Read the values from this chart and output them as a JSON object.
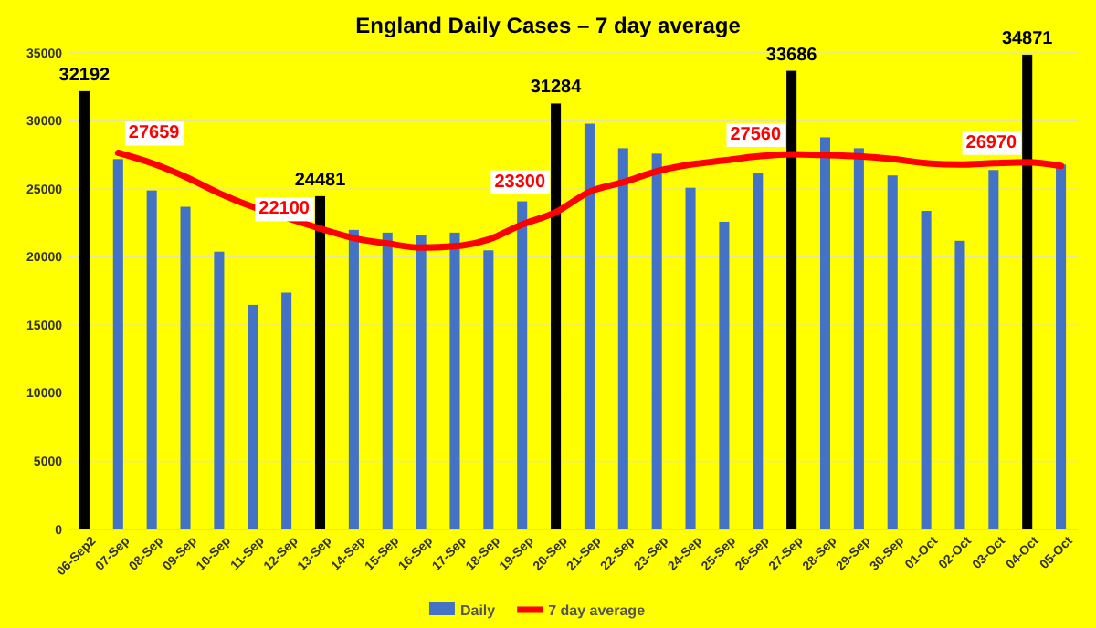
{
  "chart_data": {
    "type": "bar",
    "title": "England Daily Cases – 7 day average",
    "categories": [
      "06-Sep2",
      "07-Sep",
      "08-Sep",
      "09-Sep",
      "10-Sep",
      "11-Sep",
      "12-Sep",
      "13-Sep",
      "14-Sep",
      "15-Sep",
      "16-Sep",
      "17-Sep",
      "18-Sep",
      "19-Sep",
      "20-Sep",
      "21-Sep",
      "22-Sep",
      "23-Sep",
      "24-Sep",
      "25-Sep",
      "26-Sep",
      "27-Sep",
      "28-Sep",
      "29-Sep",
      "30-Sep",
      "01-Oct",
      "02-Oct",
      "03-Oct",
      "04-Oct",
      "05-Oct"
    ],
    "series": [
      {
        "name": "Daily",
        "color": "#4472c4",
        "colors": [
          "#000000",
          "#4472c4",
          "#4472c4",
          "#4472c4",
          "#4472c4",
          "#4472c4",
          "#4472c4",
          "#000000",
          "#4472c4",
          "#4472c4",
          "#4472c4",
          "#4472c4",
          "#4472c4",
          "#4472c4",
          "#000000",
          "#4472c4",
          "#4472c4",
          "#4472c4",
          "#4472c4",
          "#4472c4",
          "#4472c4",
          "#000000",
          "#4472c4",
          "#4472c4",
          "#4472c4",
          "#4472c4",
          "#4472c4",
          "#4472c4",
          "#000000",
          "#4472c4"
        ],
        "values": [
          32192,
          27200,
          24900,
          23700,
          20400,
          16500,
          17400,
          24481,
          22000,
          21800,
          21600,
          21800,
          20500,
          24100,
          31284,
          29800,
          28000,
          27600,
          25100,
          22600,
          26200,
          33686,
          28800,
          28000,
          26000,
          23400,
          21200,
          26400,
          34871,
          26800
        ],
        "value_labels": [
          "32192",
          null,
          null,
          null,
          null,
          null,
          null,
          "24481",
          null,
          null,
          null,
          null,
          null,
          null,
          "31284",
          null,
          null,
          null,
          null,
          null,
          null,
          "33686",
          null,
          null,
          null,
          null,
          null,
          null,
          "34871",
          null
        ]
      },
      {
        "name": "7 day average",
        "type": "line",
        "color": "#ff0000",
        "values": [
          null,
          27659,
          26900,
          25900,
          24700,
          23700,
          22900,
          22100,
          21400,
          21000,
          20700,
          20800,
          21300,
          22400,
          23300,
          24800,
          25500,
          26300,
          26800,
          27100,
          27400,
          27560,
          27500,
          27400,
          27200,
          26900,
          26800,
          26900,
          26970,
          26700
        ],
        "value_labels": [
          null,
          "27659",
          null,
          null,
          null,
          null,
          null,
          "22100",
          null,
          null,
          null,
          null,
          null,
          null,
          "23300",
          null,
          null,
          null,
          null,
          null,
          null,
          "27560",
          null,
          null,
          null,
          null,
          null,
          null,
          "26970",
          null
        ]
      }
    ],
    "ylim": [
      0,
      35000
    ],
    "yticks": [
      0,
      5000,
      10000,
      15000,
      20000,
      25000,
      30000,
      35000
    ],
    "grid": "y",
    "legend": "bottom"
  }
}
